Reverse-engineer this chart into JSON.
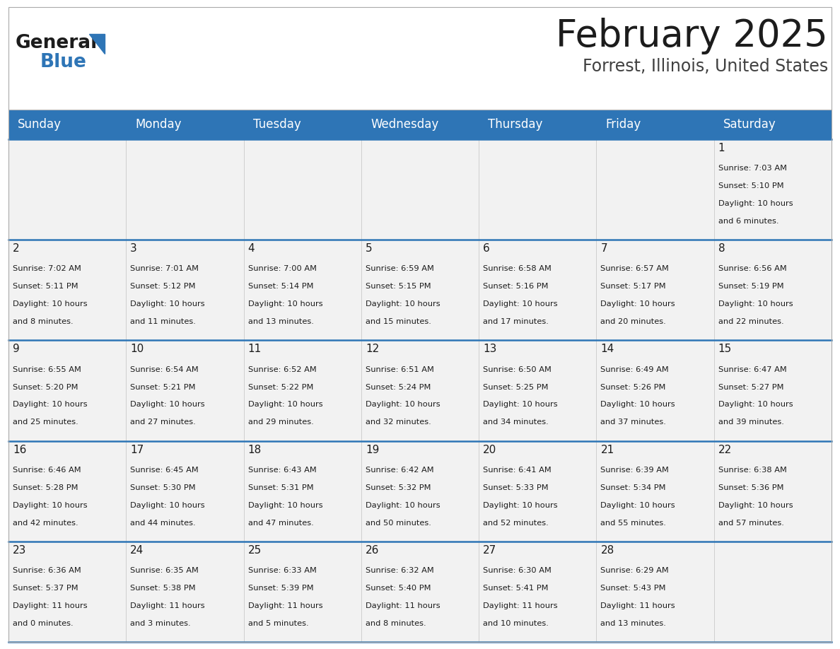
{
  "title": "February 2025",
  "subtitle": "Forrest, Illinois, United States",
  "header_bg": "#2E75B6",
  "header_text_color": "#FFFFFF",
  "cell_bg": "#F2F2F2",
  "border_color": "#2E75B6",
  "border_thin": "#CCCCCC",
  "day_headers": [
    "Sunday",
    "Monday",
    "Tuesday",
    "Wednesday",
    "Thursday",
    "Friday",
    "Saturday"
  ],
  "days": [
    {
      "day": 1,
      "col": 6,
      "row": 0,
      "sunrise": "7:03 AM",
      "sunset": "5:10 PM",
      "daylight_h": "10 hours",
      "daylight_m": "and 6 minutes."
    },
    {
      "day": 2,
      "col": 0,
      "row": 1,
      "sunrise": "7:02 AM",
      "sunset": "5:11 PM",
      "daylight_h": "10 hours",
      "daylight_m": "and 8 minutes."
    },
    {
      "day": 3,
      "col": 1,
      "row": 1,
      "sunrise": "7:01 AM",
      "sunset": "5:12 PM",
      "daylight_h": "10 hours",
      "daylight_m": "and 11 minutes."
    },
    {
      "day": 4,
      "col": 2,
      "row": 1,
      "sunrise": "7:00 AM",
      "sunset": "5:14 PM",
      "daylight_h": "10 hours",
      "daylight_m": "and 13 minutes."
    },
    {
      "day": 5,
      "col": 3,
      "row": 1,
      "sunrise": "6:59 AM",
      "sunset": "5:15 PM",
      "daylight_h": "10 hours",
      "daylight_m": "and 15 minutes."
    },
    {
      "day": 6,
      "col": 4,
      "row": 1,
      "sunrise": "6:58 AM",
      "sunset": "5:16 PM",
      "daylight_h": "10 hours",
      "daylight_m": "and 17 minutes."
    },
    {
      "day": 7,
      "col": 5,
      "row": 1,
      "sunrise": "6:57 AM",
      "sunset": "5:17 PM",
      "daylight_h": "10 hours",
      "daylight_m": "and 20 minutes."
    },
    {
      "day": 8,
      "col": 6,
      "row": 1,
      "sunrise": "6:56 AM",
      "sunset": "5:19 PM",
      "daylight_h": "10 hours",
      "daylight_m": "and 22 minutes."
    },
    {
      "day": 9,
      "col": 0,
      "row": 2,
      "sunrise": "6:55 AM",
      "sunset": "5:20 PM",
      "daylight_h": "10 hours",
      "daylight_m": "and 25 minutes."
    },
    {
      "day": 10,
      "col": 1,
      "row": 2,
      "sunrise": "6:54 AM",
      "sunset": "5:21 PM",
      "daylight_h": "10 hours",
      "daylight_m": "and 27 minutes."
    },
    {
      "day": 11,
      "col": 2,
      "row": 2,
      "sunrise": "6:52 AM",
      "sunset": "5:22 PM",
      "daylight_h": "10 hours",
      "daylight_m": "and 29 minutes."
    },
    {
      "day": 12,
      "col": 3,
      "row": 2,
      "sunrise": "6:51 AM",
      "sunset": "5:24 PM",
      "daylight_h": "10 hours",
      "daylight_m": "and 32 minutes."
    },
    {
      "day": 13,
      "col": 4,
      "row": 2,
      "sunrise": "6:50 AM",
      "sunset": "5:25 PM",
      "daylight_h": "10 hours",
      "daylight_m": "and 34 minutes."
    },
    {
      "day": 14,
      "col": 5,
      "row": 2,
      "sunrise": "6:49 AM",
      "sunset": "5:26 PM",
      "daylight_h": "10 hours",
      "daylight_m": "and 37 minutes."
    },
    {
      "day": 15,
      "col": 6,
      "row": 2,
      "sunrise": "6:47 AM",
      "sunset": "5:27 PM",
      "daylight_h": "10 hours",
      "daylight_m": "and 39 minutes."
    },
    {
      "day": 16,
      "col": 0,
      "row": 3,
      "sunrise": "6:46 AM",
      "sunset": "5:28 PM",
      "daylight_h": "10 hours",
      "daylight_m": "and 42 minutes."
    },
    {
      "day": 17,
      "col": 1,
      "row": 3,
      "sunrise": "6:45 AM",
      "sunset": "5:30 PM",
      "daylight_h": "10 hours",
      "daylight_m": "and 44 minutes."
    },
    {
      "day": 18,
      "col": 2,
      "row": 3,
      "sunrise": "6:43 AM",
      "sunset": "5:31 PM",
      "daylight_h": "10 hours",
      "daylight_m": "and 47 minutes."
    },
    {
      "day": 19,
      "col": 3,
      "row": 3,
      "sunrise": "6:42 AM",
      "sunset": "5:32 PM",
      "daylight_h": "10 hours",
      "daylight_m": "and 50 minutes."
    },
    {
      "day": 20,
      "col": 4,
      "row": 3,
      "sunrise": "6:41 AM",
      "sunset": "5:33 PM",
      "daylight_h": "10 hours",
      "daylight_m": "and 52 minutes."
    },
    {
      "day": 21,
      "col": 5,
      "row": 3,
      "sunrise": "6:39 AM",
      "sunset": "5:34 PM",
      "daylight_h": "10 hours",
      "daylight_m": "and 55 minutes."
    },
    {
      "day": 22,
      "col": 6,
      "row": 3,
      "sunrise": "6:38 AM",
      "sunset": "5:36 PM",
      "daylight_h": "10 hours",
      "daylight_m": "and 57 minutes."
    },
    {
      "day": 23,
      "col": 0,
      "row": 4,
      "sunrise": "6:36 AM",
      "sunset": "5:37 PM",
      "daylight_h": "11 hours",
      "daylight_m": "and 0 minutes."
    },
    {
      "day": 24,
      "col": 1,
      "row": 4,
      "sunrise": "6:35 AM",
      "sunset": "5:38 PM",
      "daylight_h": "11 hours",
      "daylight_m": "and 3 minutes."
    },
    {
      "day": 25,
      "col": 2,
      "row": 4,
      "sunrise": "6:33 AM",
      "sunset": "5:39 PM",
      "daylight_h": "11 hours",
      "daylight_m": "and 5 minutes."
    },
    {
      "day": 26,
      "col": 3,
      "row": 4,
      "sunrise": "6:32 AM",
      "sunset": "5:40 PM",
      "daylight_h": "11 hours",
      "daylight_m": "and 8 minutes."
    },
    {
      "day": 27,
      "col": 4,
      "row": 4,
      "sunrise": "6:30 AM",
      "sunset": "5:41 PM",
      "daylight_h": "11 hours",
      "daylight_m": "and 10 minutes."
    },
    {
      "day": 28,
      "col": 5,
      "row": 4,
      "sunrise": "6:29 AM",
      "sunset": "5:43 PM",
      "daylight_h": "11 hours",
      "daylight_m": "and 13 minutes."
    }
  ],
  "num_rows": 5,
  "num_cols": 7,
  "title_fontsize": 38,
  "subtitle_fontsize": 17,
  "header_fontsize": 12,
  "day_number_fontsize": 11,
  "cell_text_fontsize": 8.2
}
